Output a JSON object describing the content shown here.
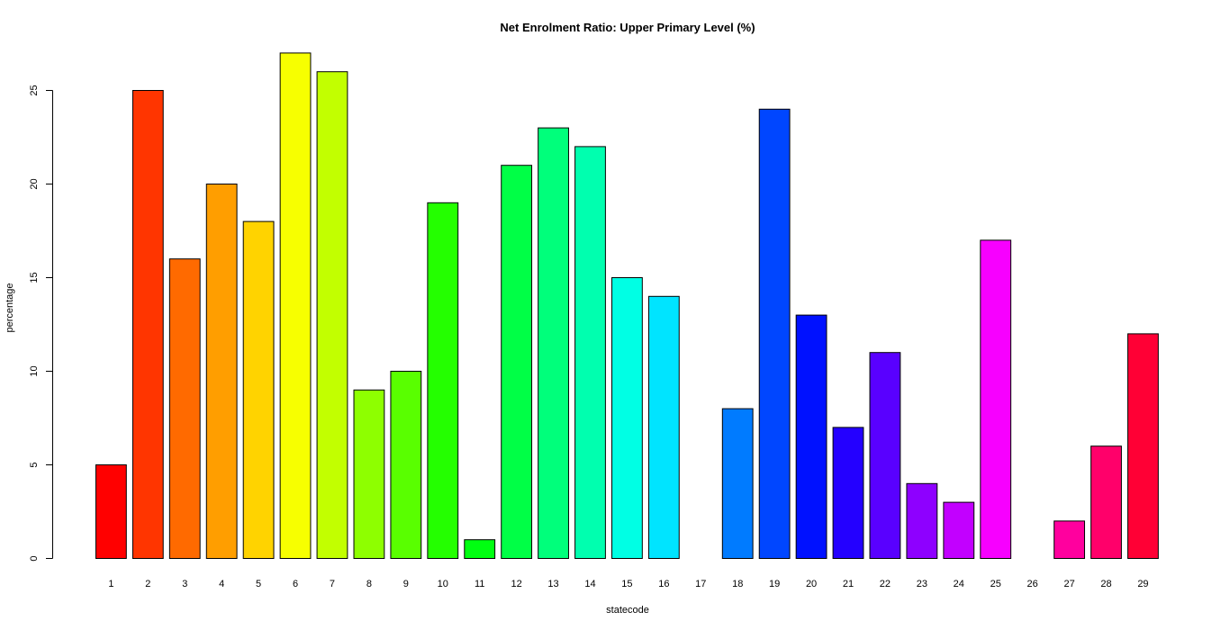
{
  "chart_data": {
    "type": "bar",
    "title": "Net Enrolment Ratio: Upper Primary Level (%)",
    "xlabel": "statecode",
    "ylabel": "percentage",
    "categories": [
      "1",
      "2",
      "3",
      "4",
      "5",
      "6",
      "7",
      "8",
      "9",
      "10",
      "11",
      "12",
      "13",
      "14",
      "15",
      "16",
      "17",
      "18",
      "19",
      "20",
      "21",
      "22",
      "23",
      "24",
      "25",
      "26",
      "27",
      "28",
      "29"
    ],
    "values": [
      5,
      25,
      16,
      20,
      18,
      27,
      26,
      9,
      10,
      19,
      1,
      21,
      23,
      22,
      15,
      14,
      0,
      8,
      24,
      13,
      7,
      11,
      4,
      3,
      17,
      0,
      2,
      6,
      12
    ],
    "colors": [
      "#FF0000",
      "#FF3500",
      "#FF6A00",
      "#FF9E00",
      "#FFD300",
      "#F7FF00",
      "#C2FF00",
      "#8EFF00",
      "#59FF00",
      "#24FF00",
      "#00FF11",
      "#00FF46",
      "#00FF7B",
      "#00FFAF",
      "#00FFE4",
      "#00E4FF",
      "#00AFFF",
      "#007BFF",
      "#0046FF",
      "#0011FF",
      "#2400FF",
      "#5900FF",
      "#8E00FF",
      "#C200FF",
      "#F700FF",
      "#FF00D3",
      "#FF009E",
      "#FF006A",
      "#FF0035"
    ],
    "ylim": [
      0,
      27
    ],
    "yticks": [
      0,
      5,
      10,
      15,
      20,
      25
    ],
    "grid": false,
    "legend": "none"
  }
}
